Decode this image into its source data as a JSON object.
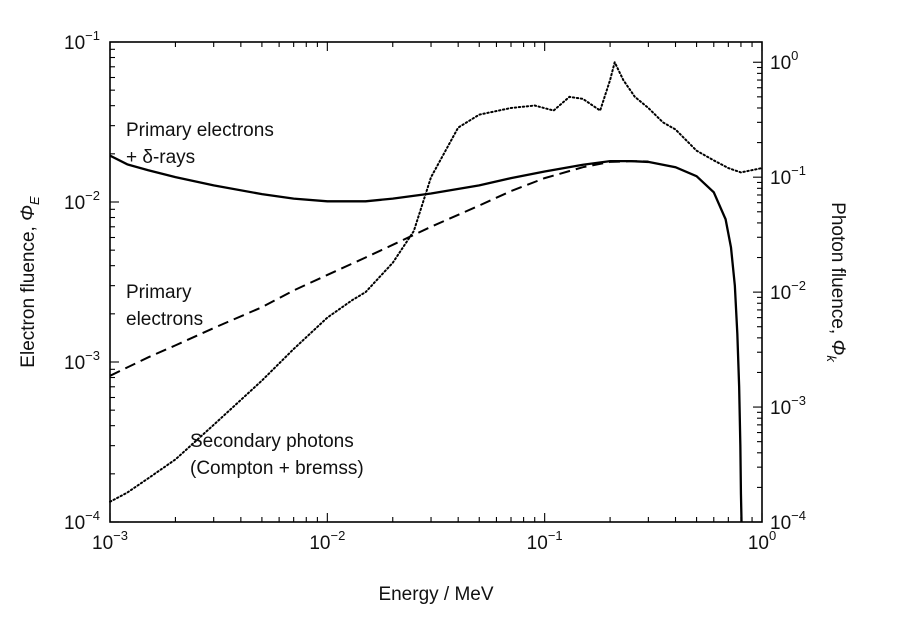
{
  "chart_data": {
    "type": "line",
    "x_axis": {
      "label": "Energy / MeV",
      "scale": "log",
      "range": [
        0.001,
        1
      ],
      "ticks": [
        {
          "value": 0.001,
          "base": "10",
          "exp": "−3"
        },
        {
          "value": 0.01,
          "base": "10",
          "exp": "−2"
        },
        {
          "value": 0.1,
          "base": "10",
          "exp": "−1"
        },
        {
          "value": 1,
          "base": "10",
          "exp": "0"
        }
      ]
    },
    "y_axis_left": {
      "label": "Electron fluence, ",
      "label_symbol": "Φ",
      "label_sub": "E",
      "scale": "log",
      "range": [
        0.0001,
        0.1
      ],
      "ticks": [
        {
          "value": 0.0001,
          "base": "10",
          "exp": "−4"
        },
        {
          "value": 0.001,
          "base": "10",
          "exp": "−3"
        },
        {
          "value": 0.01,
          "base": "10",
          "exp": "−2"
        },
        {
          "value": 0.1,
          "base": "10",
          "exp": "−1"
        }
      ]
    },
    "y_axis_right": {
      "label": "Photon fluence, ",
      "label_symbol": "Φ",
      "label_sub": "k",
      "scale": "log",
      "range": [
        0.0001,
        1.5
      ],
      "ticks": [
        {
          "value": 0.0001,
          "base": "10",
          "exp": "−4"
        },
        {
          "value": 0.001,
          "base": "10",
          "exp": "−3"
        },
        {
          "value": 0.01,
          "base": "10",
          "exp": "−2"
        },
        {
          "value": 0.1,
          "base": "10",
          "exp": "−1"
        },
        {
          "value": 1,
          "base": "10",
          "exp": "0"
        }
      ]
    },
    "series": [
      {
        "axis": "left",
        "style": "solid",
        "x": [
          0.001,
          0.0012,
          0.0015,
          0.002,
          0.003,
          0.005,
          0.007,
          0.01,
          0.015,
          0.02,
          0.03,
          0.05,
          0.07,
          0.1,
          0.15,
          0.2,
          0.25,
          0.3,
          0.4,
          0.5,
          0.6,
          0.68,
          0.72,
          0.75,
          0.77,
          0.785,
          0.795,
          0.8,
          0.805
        ],
        "y": [
          0.0195,
          0.0172,
          0.0158,
          0.0143,
          0.0127,
          0.0112,
          0.0105,
          0.0101,
          0.0101,
          0.0105,
          0.0113,
          0.0127,
          0.0141,
          0.0155,
          0.0171,
          0.018,
          0.018,
          0.0178,
          0.0165,
          0.0145,
          0.0115,
          0.0078,
          0.0052,
          0.003,
          0.0015,
          0.0007,
          0.0003,
          0.00015,
          0.0001
        ]
      },
      {
        "axis": "left",
        "style": "dashed",
        "x": [
          0.001,
          0.0015,
          0.002,
          0.003,
          0.005,
          0.007,
          0.01,
          0.015,
          0.02,
          0.03,
          0.05,
          0.07,
          0.1,
          0.15,
          0.2,
          0.25,
          0.3
        ],
        "y": [
          0.00082,
          0.00107,
          0.00127,
          0.00163,
          0.0022,
          0.0028,
          0.0035,
          0.0045,
          0.0054,
          0.007,
          0.0095,
          0.0117,
          0.0141,
          0.0165,
          0.0178,
          0.018,
          0.0179
        ]
      },
      {
        "axis": "right",
        "style": "dotted",
        "x": [
          0.001,
          0.0012,
          0.0015,
          0.002,
          0.003,
          0.005,
          0.007,
          0.01,
          0.013,
          0.015,
          0.02,
          0.025,
          0.03,
          0.04,
          0.05,
          0.07,
          0.09,
          0.11,
          0.13,
          0.15,
          0.18,
          0.2,
          0.21,
          0.23,
          0.26,
          0.3,
          0.35,
          0.4,
          0.5,
          0.6,
          0.7,
          0.8,
          1.0
        ],
        "y": [
          0.00015,
          0.00018,
          0.00024,
          0.00035,
          0.0007,
          0.0017,
          0.0032,
          0.006,
          0.0085,
          0.01,
          0.018,
          0.034,
          0.1,
          0.27,
          0.35,
          0.4,
          0.42,
          0.38,
          0.5,
          0.48,
          0.38,
          0.7,
          1.0,
          0.7,
          0.5,
          0.4,
          0.3,
          0.26,
          0.17,
          0.14,
          0.12,
          0.11,
          0.12
        ]
      }
    ],
    "annotations": [
      {
        "lines": [
          "Primary electrons",
          "+ δ-rays"
        ]
      },
      {
        "lines": [
          "Primary",
          "electrons"
        ]
      },
      {
        "lines": [
          "Secondary photons",
          "(Compton + bremss)"
        ]
      }
    ]
  }
}
